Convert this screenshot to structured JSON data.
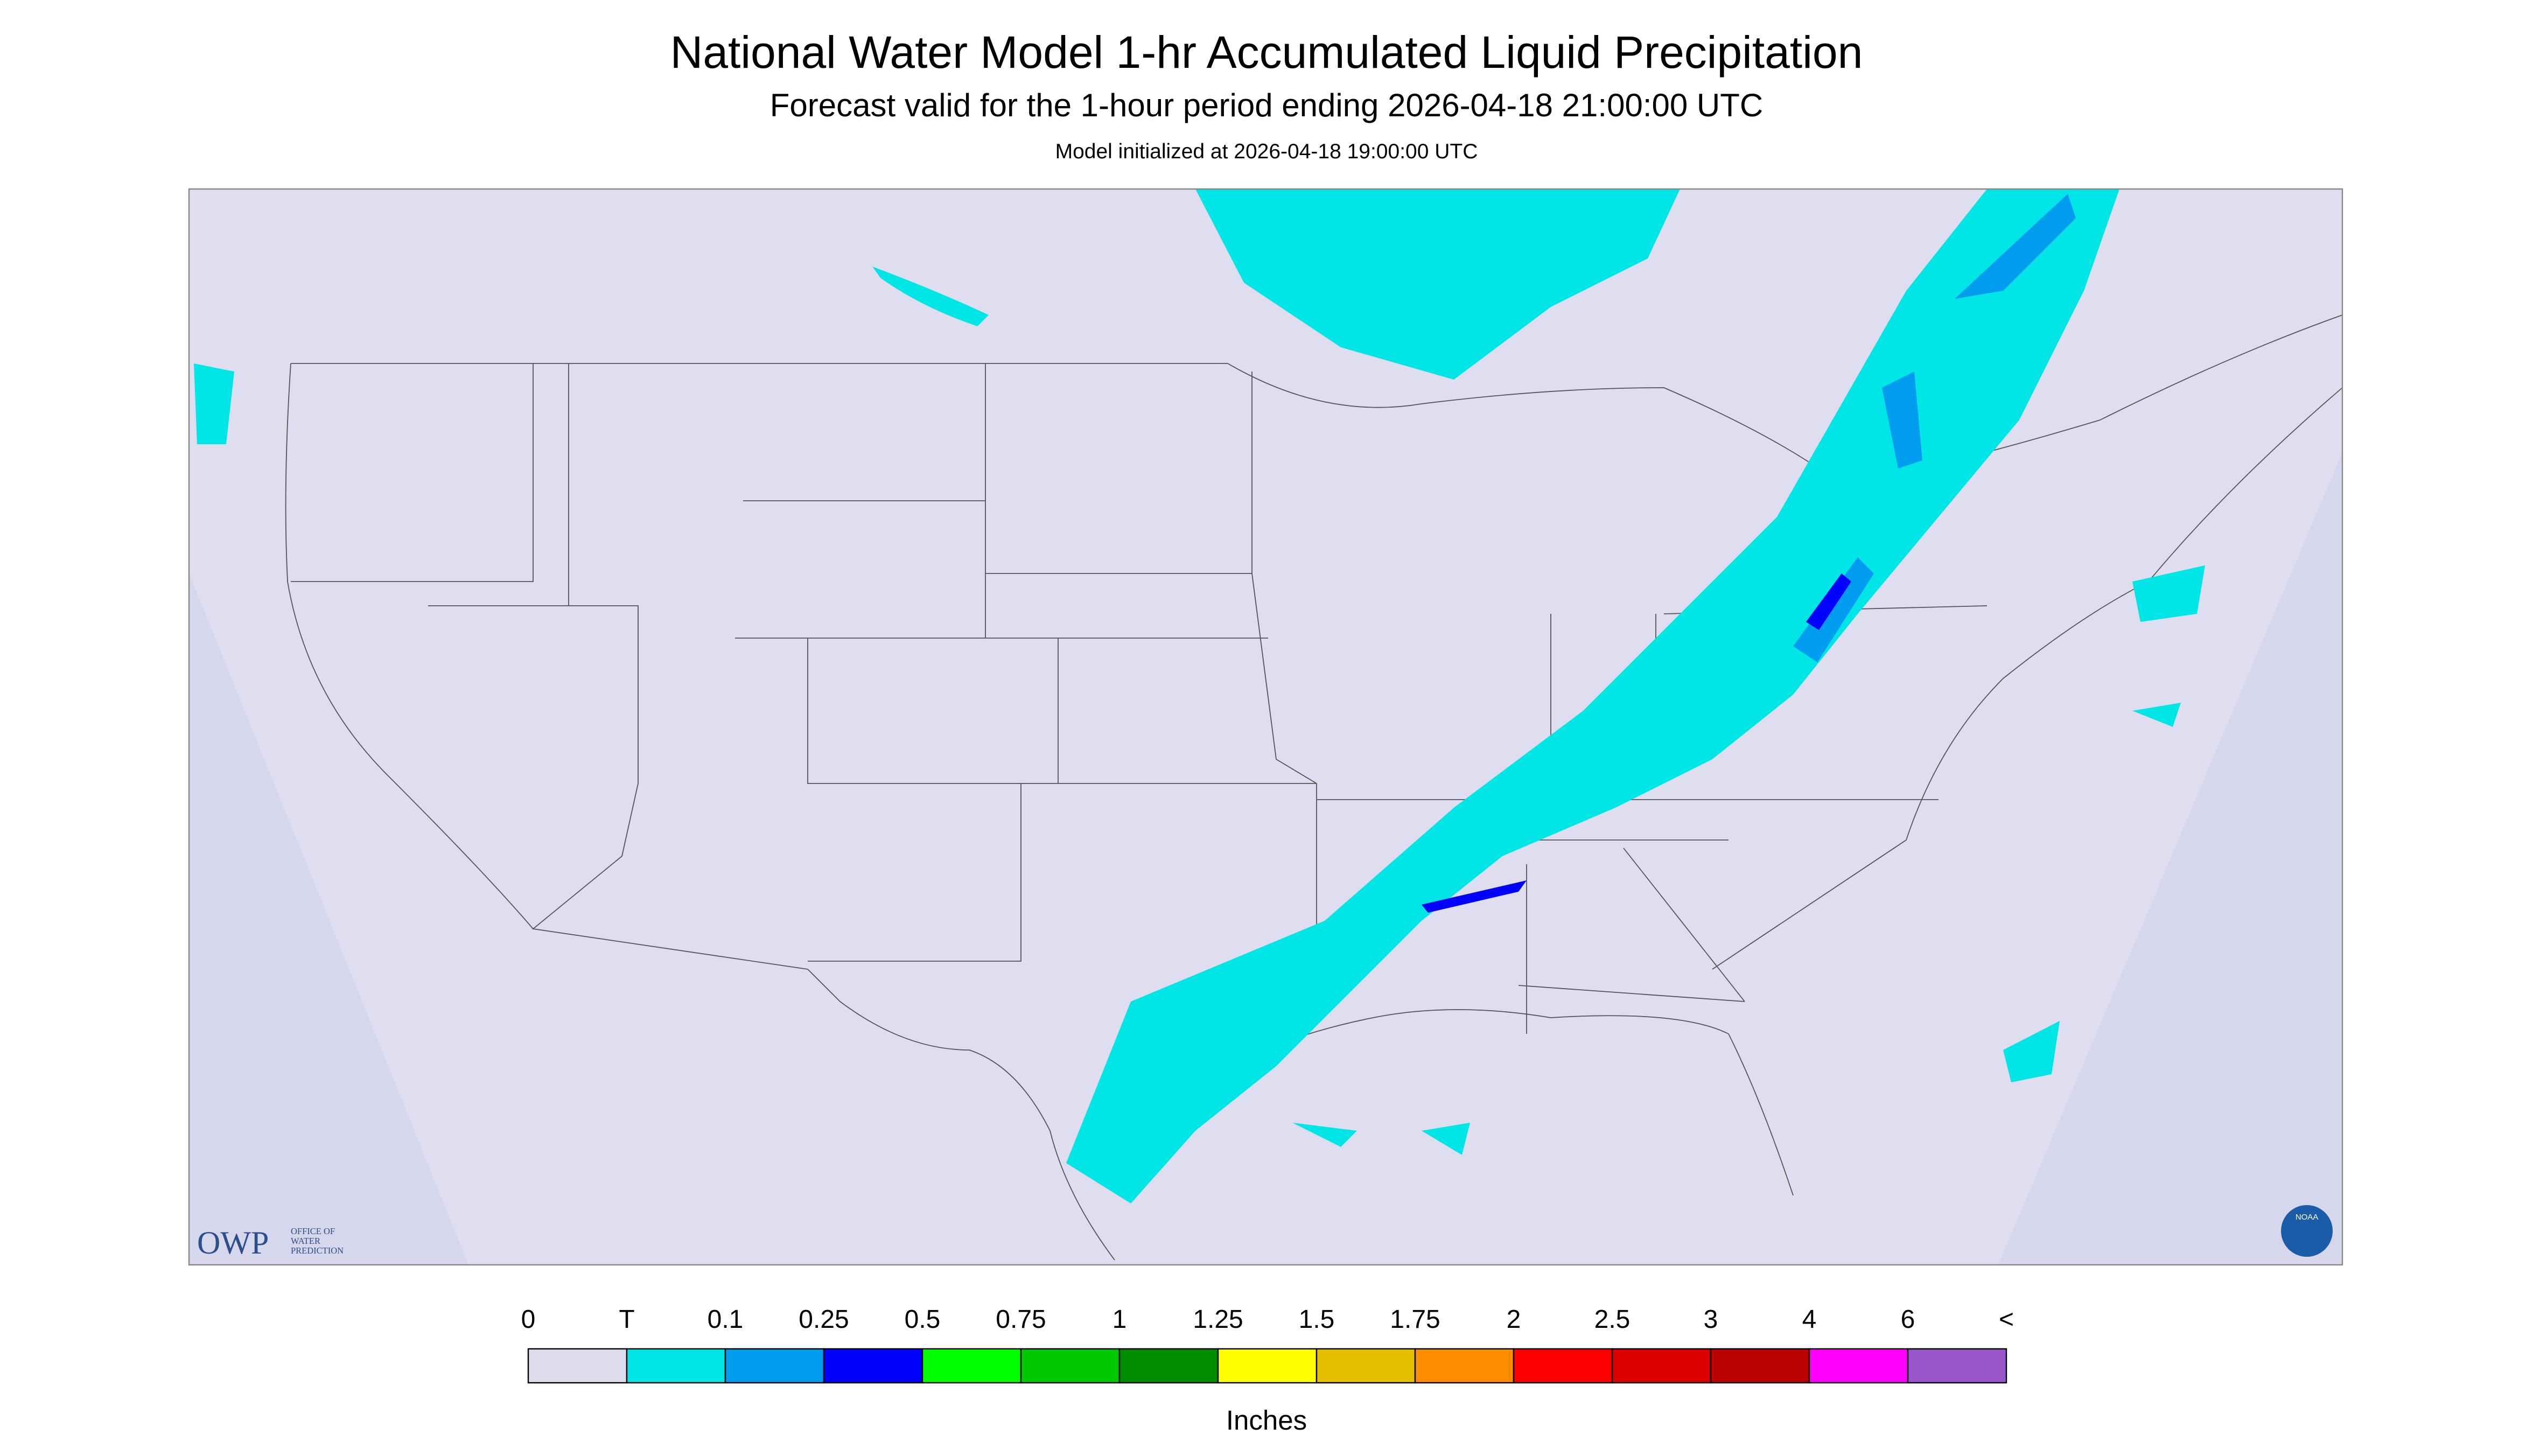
{
  "header": {
    "title": "National Water Model 1-hr Accumulated Liquid Precipitation",
    "subtitle": "Forecast valid for the 1-hour period ending 2026-04-18 21:00:00 UTC",
    "initialized": "Model initialized at 2026-04-18 19:00:00 UTC"
  },
  "logos": {
    "owp": "OWP",
    "owp_lines": [
      "OFFICE OF",
      "WATER",
      "PREDICTION"
    ],
    "noaa": "NOAA"
  },
  "legend": {
    "labels": [
      "0",
      "T",
      "0.1",
      "0.25",
      "0.5",
      "0.75",
      "1",
      "1.25",
      "1.5",
      "1.75",
      "2",
      "2.5",
      "3",
      "4",
      "6",
      "<"
    ],
    "colors": [
      "#dcdcee",
      "#00e5e5",
      "#009cf0",
      "#0000ff",
      "#00ff00",
      "#00c800",
      "#008c00",
      "#ffff00",
      "#e6c000",
      "#ff8c00",
      "#ff0000",
      "#dd0000",
      "#bb0000",
      "#ff00ff",
      "#9955cc"
    ],
    "unit": "Inches"
  }
}
